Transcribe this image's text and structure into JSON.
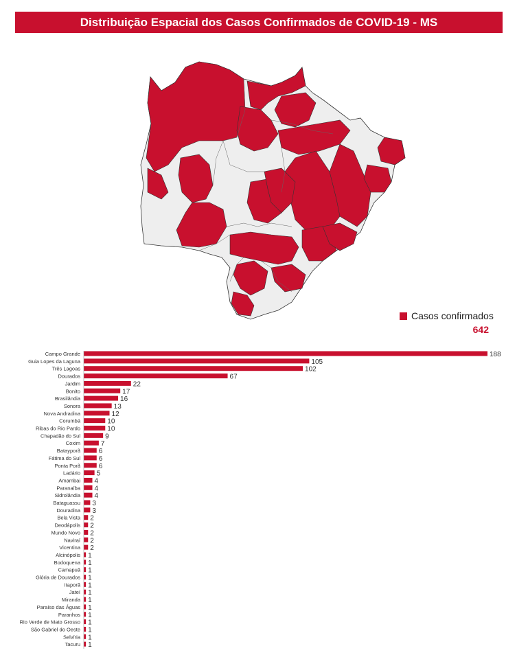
{
  "title": "Distribuição Espacial dos Casos Confirmados de COVID-19 - MS",
  "legend": {
    "label": "Casos confirmados",
    "total": "642"
  },
  "colors": {
    "accent": "#c8102e",
    "map_gray": "#eeeeee"
  },
  "chart_data": {
    "type": "bar",
    "orientation": "horizontal",
    "title": "",
    "xlabel": "",
    "ylabel": "",
    "xlim": [
      0,
      188
    ],
    "categories": [
      "Campo Grande",
      "Guia Lopes da Laguna",
      "Três Lagoas",
      "Dourados",
      "Jardim",
      "Bonito",
      "Brasilândia",
      "Sonora",
      "Nova Andradina",
      "Corumbá",
      "Ribas do Rio Pardo",
      "Chapadão do Sul",
      "Coxim",
      "Batayporã",
      "Fátima do Sul",
      "Ponta Porã",
      "Ladário",
      "Amambai",
      "Paranaíba",
      "Sidrolândia",
      "Bataguassu",
      "Douradina",
      "Bela Vista",
      "Deodápolis",
      "Mundo Novo",
      "Naviraí",
      "Vicentina",
      "Alcinópolis",
      "Bodoquena",
      "Camapuã",
      "Glória de Dourados",
      "Itaporã",
      "Jateí",
      "Miranda",
      "Paraíso das Águas",
      "Paranhos",
      "Rio Verde de Mato Grosso",
      "São Gabriel do Oeste",
      "Selvíria",
      "Tacuru"
    ],
    "values": [
      188,
      105,
      102,
      67,
      22,
      17,
      16,
      13,
      12,
      10,
      10,
      9,
      7,
      6,
      6,
      6,
      5,
      4,
      4,
      4,
      3,
      3,
      2,
      2,
      2,
      2,
      2,
      1,
      1,
      1,
      1,
      1,
      1,
      1,
      1,
      1,
      1,
      1,
      1,
      1
    ]
  }
}
